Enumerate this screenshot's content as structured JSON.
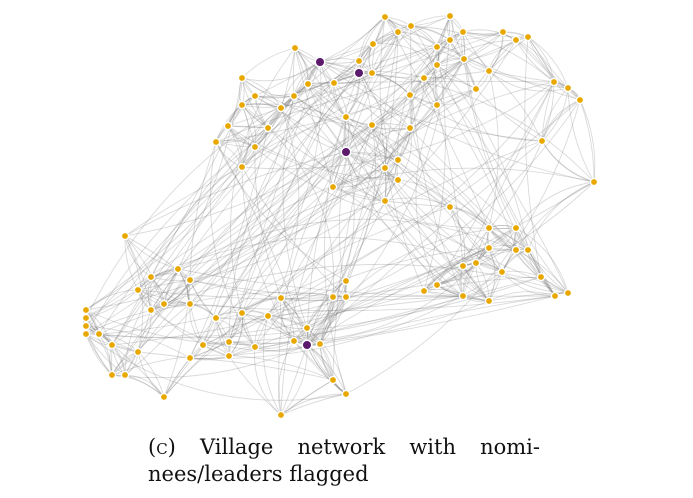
{
  "caption": {
    "label": "(c)",
    "line1_words": [
      "Village",
      "network",
      "with",
      "nomi-"
    ],
    "line2": "nees/leaders flagged"
  },
  "legend_colors": {
    "regular_node": "#e8a800",
    "flagged_node": "#5b1a6b",
    "edge": "#7a7a7a"
  },
  "network": {
    "node_count": 96,
    "flagged_count": 4
  }
}
